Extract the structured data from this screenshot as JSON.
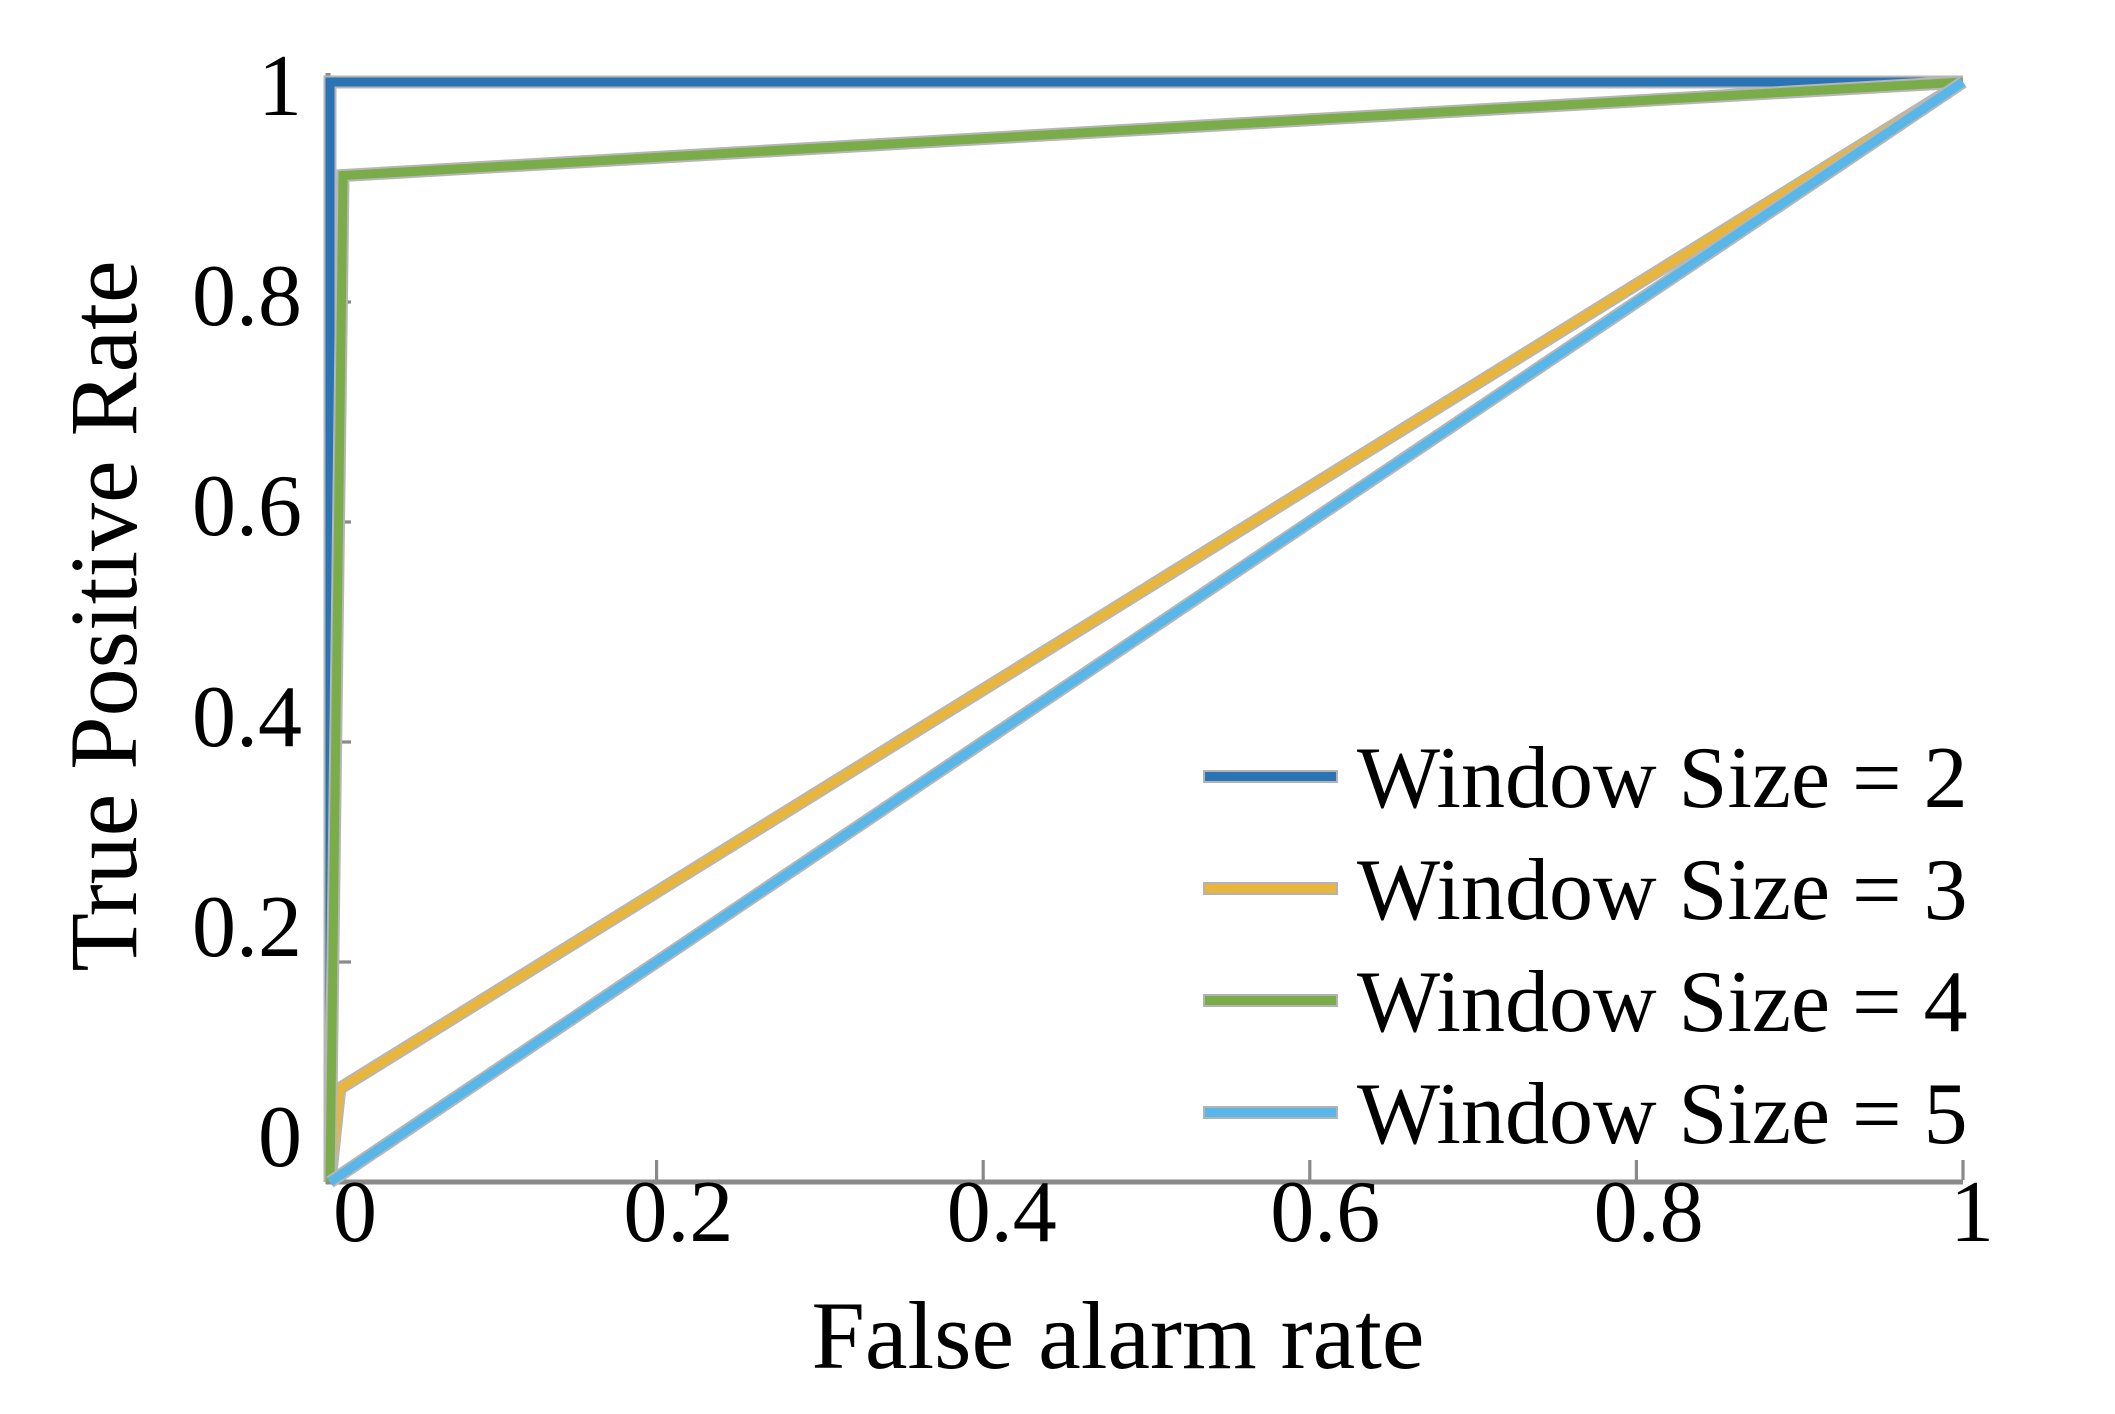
{
  "figure": {
    "background": "#ffffff",
    "text_color": "#000000",
    "axis_color": "#8a8a8a",
    "curve_halo_color": "#b6b6b6",
    "legend_swatch_border_color": "#b3b3b3"
  },
  "chart_data": {
    "type": "line",
    "title": "",
    "xlabel": "False alarm rate",
    "ylabel": "True Positive Rate",
    "xlim": [
      0,
      1
    ],
    "ylim": [
      0,
      1
    ],
    "grid": false,
    "legend_position": "inside lower right",
    "x_ticks": [
      0,
      0.2,
      0.4,
      0.6,
      0.8,
      1
    ],
    "x_tick_labels": [
      "0",
      "0.2",
      "0.4",
      "0.6",
      "0.8",
      "1"
    ],
    "y_ticks": [
      0,
      0.2,
      0.4,
      0.6,
      0.8,
      1
    ],
    "y_tick_labels": [
      "0",
      "0.2",
      "0.4",
      "0.6",
      "0.8",
      "1"
    ],
    "series": [
      {
        "name": "Window Size = 2",
        "color": "#2a73b5",
        "points": [
          [
            0,
            0
          ],
          [
            0,
            1
          ],
          [
            1,
            1
          ]
        ]
      },
      {
        "name": "Window Size = 3",
        "color": "#e9b63d",
        "points": [
          [
            0,
            0
          ],
          [
            0.006,
            0.085
          ],
          [
            1,
            1
          ]
        ]
      },
      {
        "name": "Window Size = 4",
        "color": "#7aad49",
        "points": [
          [
            0,
            0
          ],
          [
            0.008,
            0.915
          ],
          [
            1,
            1
          ]
        ]
      },
      {
        "name": "Window Size = 5",
        "color": "#58b7e8",
        "points": [
          [
            0,
            0
          ],
          [
            1,
            1
          ]
        ]
      }
    ]
  }
}
